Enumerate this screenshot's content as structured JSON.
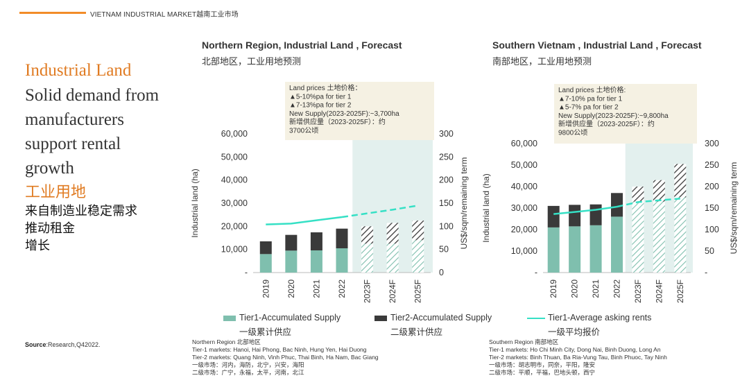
{
  "header": {
    "text": "VIETNAM INDUSTRIAL MARKET越南工业市场"
  },
  "left": {
    "title_en": "Industrial Land",
    "subtitle_en": [
      "Solid demand from",
      "manufacturers",
      "support rental",
      "growth"
    ],
    "title_zh": "工业用地",
    "subtitle_zh": [
      "来自制造业稳定需求",
      "推动租金",
      "增长"
    ]
  },
  "source": {
    "bold": "Source",
    "text": ":Research,Q42022."
  },
  "colors": {
    "tier1": "#7fbfae",
    "tier2": "#3a3a3a",
    "rent": "#35e0c5",
    "forecast_bg": "#e3f0ee",
    "note_bg": "#f5f1e3",
    "accent": "#e07b22"
  },
  "legend": {
    "tier1": "Tier1-Accumulated Supply",
    "tier1_zh": "一级累计供应",
    "tier2": "Tier2-Accumulated Supply",
    "tier2_zh": "二级累计供应",
    "rent": "Tier1-Average asking rents",
    "rent_zh": "一级平均报价"
  },
  "chart_data": [
    {
      "type": "bar",
      "title": "Northern Region, Industrial Land , Forecast",
      "subtitle": "北部地区，工业用地预测",
      "categories": [
        "2019",
        "2020",
        "2021",
        "2022",
        "2023F",
        "2024F",
        "2025F"
      ],
      "forecast_categories": [
        "2023F",
        "2024F",
        "2025F"
      ],
      "ylabel": "Industrial land (ha)",
      "y2label": "US$/sqm/remaining term",
      "ylim": [
        0,
        60000
      ],
      "yticks": [
        "-",
        "10,000",
        "20,000",
        "30,000",
        "40,000",
        "50,000",
        "60,000"
      ],
      "y2lim": [
        0,
        300
      ],
      "y2ticks": [
        "0",
        "50",
        "100",
        "150",
        "200",
        "250",
        "300"
      ],
      "series": [
        {
          "name": "Tier1-Accumulated Supply",
          "kind": "bar",
          "values": [
            8000,
            9500,
            9600,
            10500,
            12500,
            12500,
            14000
          ]
        },
        {
          "name": "Tier2-Accumulated Supply",
          "kind": "bar",
          "values": [
            5500,
            6800,
            7800,
            8500,
            7500,
            9000,
            8500
          ]
        },
        {
          "name": "Tier1-Average asking rents",
          "kind": "line",
          "values": [
            104,
            106,
            113,
            120,
            128,
            136,
            145
          ]
        }
      ],
      "annotation": [
        "Land prices 土地价格：",
        "▲5-10%pa for tier 1",
        "▲7-13%pa for tier 2",
        "New Supply(2023-2025F):~3,700ha",
        "新增供应量（2023-2025F）：约",
        "3700公顷"
      ],
      "footnote": [
        "Northern Region  北部地区",
        "Tier-1 markets: Hanoi, Hai Phong, Bac Ninh, Hung Yen, Hai Duong",
        "Tier-2 markets: Quang Ninh, Vinh Phuc, Thai Binh, Ha Nam, Bac Giang",
        "一级市场：河内，海防，北宁，兴安，海阳",
        "二级市场：广宁，永福，太平，河南，北江"
      ]
    },
    {
      "type": "bar",
      "title": "Southern Vietnam , Industrial Land , Forecast",
      "subtitle": "南部地区，工业用地预测",
      "categories": [
        "2019",
        "2020",
        "2021",
        "2022",
        "2023F",
        "2024F",
        "2025F"
      ],
      "forecast_categories": [
        "2023F",
        "2024F",
        "2025F"
      ],
      "ylabel": "Industrial land (ha)",
      "y2label": "US$/sqm/remaining term",
      "ylim": [
        0,
        60000
      ],
      "yticks": [
        "-",
        "10,000",
        "20,000",
        "30,000",
        "40,000",
        "50,000",
        "60,000"
      ],
      "y2lim": [
        0,
        300
      ],
      "y2ticks": [
        "-",
        "50",
        "100",
        "150",
        "200",
        "250",
        "300"
      ],
      "series": [
        {
          "name": "Tier1-Accumulated Supply",
          "kind": "bar",
          "values": [
            21000,
            21500,
            22000,
            26000,
            33000,
            33000,
            35000
          ]
        },
        {
          "name": "Tier2-Accumulated Supply",
          "kind": "bar",
          "values": [
            10000,
            10000,
            9700,
            11000,
            7000,
            10000,
            15500
          ]
        },
        {
          "name": "Tier1-Average asking rents",
          "kind": "line",
          "values": [
            136,
            141,
            146,
            153,
            164,
            168,
            172
          ]
        }
      ],
      "annotation": [
        "Land prices 土地价格:",
        "▲7-10% pa for tier 1",
        "▲5-7% pa for tier 2",
        "New Supply(2023-2025F):~9,800ha",
        "新增供应量（2023-2025F）：约",
        "9800公顷"
      ],
      "footnote": [
        "Southern Region 南部地区",
        "Tier-1 markets: Ho Chi Minh City, Dong Nai, Binh Duong, Long An",
        "Tier-2 markets: Binh Thuan, Ba Ria-Vung Tau, Binh Phuoc, Tay Ninh",
        "一级市场：胡志明市，同奈，平阳，隆安",
        "二级市场：平顺，平福，巴地头顿，西宁"
      ]
    }
  ]
}
